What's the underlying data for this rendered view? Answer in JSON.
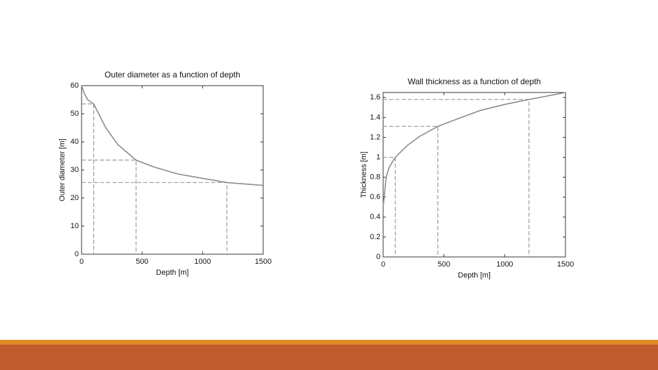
{
  "chart_data": [
    {
      "type": "line",
      "title": "Outer diameter as a function of depth",
      "x_label": "Depth [m]",
      "y_label": "Outer diameter [m]",
      "x": [
        0,
        25,
        50,
        100,
        200,
        300,
        450,
        600,
        800,
        1000,
        1200,
        1500
      ],
      "values": [
        60,
        57,
        55,
        53.5,
        45,
        39,
        33.5,
        31,
        28.5,
        27,
        25.5,
        24.5
      ],
      "color": "#8a8a8a",
      "reference_points": {
        "x": [
          100,
          450,
          1200
        ],
        "y": [
          53.5,
          33.5,
          25.5
        ],
        "color": "#999999"
      },
      "xlim": [
        0,
        1500
      ],
      "xticks": [
        0,
        500,
        1000,
        1500
      ],
      "ylim": [
        0,
        60
      ],
      "yticks": [
        0,
        10,
        20,
        30,
        40,
        50,
        60
      ]
    },
    {
      "type": "line",
      "title": "Wall thickness as a function of depth",
      "x_label": "Depth [m]",
      "y_label": "Thickness [m]",
      "x": [
        0,
        25,
        50,
        100,
        200,
        300,
        450,
        600,
        800,
        1000,
        1200,
        1500
      ],
      "values": [
        0.5,
        0.8,
        0.9,
        1.0,
        1.12,
        1.21,
        1.31,
        1.38,
        1.47,
        1.53,
        1.58,
        1.65
      ],
      "color": "#8a8a8a",
      "reference_points": {
        "x": [
          100,
          450,
          1200
        ],
        "y": [
          1.0,
          1.31,
          1.58
        ],
        "color": "#999999"
      },
      "xlim": [
        0,
        1500
      ],
      "xticks": [
        0,
        500,
        1000,
        1500
      ],
      "ylim": [
        0,
        1.65
      ],
      "yticks": [
        0,
        0.2,
        0.4,
        0.6,
        0.8,
        1,
        1.2,
        1.4,
        1.6
      ]
    }
  ]
}
